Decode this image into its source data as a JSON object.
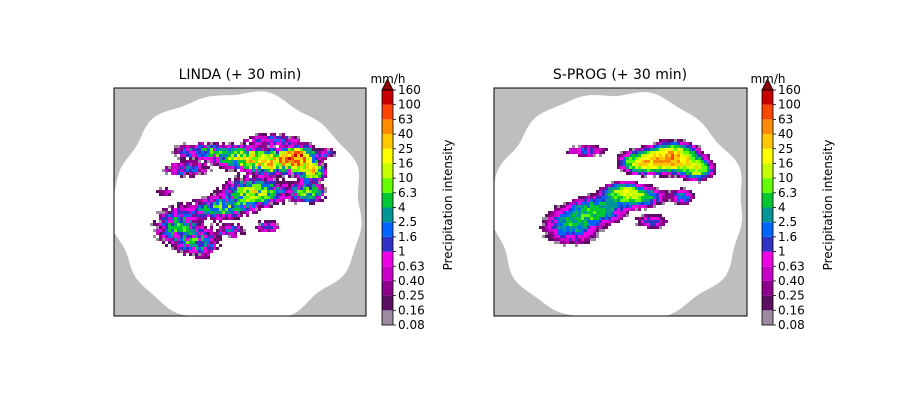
{
  "chart_data": [
    {
      "type": "heatmap",
      "title": "LINDA (+ 30 min)",
      "variant": "linda",
      "colorbar": {
        "unit": "mm/h",
        "label": "Precipitation intensity",
        "levels": [
          "0.08",
          "0.16",
          "0.25",
          "0.40",
          "0.63",
          "1",
          "1.6",
          "2.5",
          "4",
          "6.3",
          "10",
          "16",
          "25",
          "40",
          "63",
          "100",
          "160"
        ],
        "extend": "max"
      }
    },
    {
      "type": "heatmap",
      "title": "S-PROG (+ 30 min)",
      "variant": "sprog",
      "colorbar": {
        "unit": "mm/h",
        "label": "Precipitation intensity",
        "levels": [
          "0.08",
          "0.16",
          "0.25",
          "0.40",
          "0.63",
          "1",
          "1.6",
          "2.5",
          "4",
          "6.3",
          "10",
          "16",
          "25",
          "40",
          "63",
          "100",
          "160"
        ],
        "extend": "max"
      }
    }
  ],
  "colors": {
    "no_data": "#bebebe",
    "background": "#ffffff",
    "bins": [
      "#9c8aa0",
      "#5a0f62",
      "#8c008c",
      "#c800c8",
      "#f000e6",
      "#3232c8",
      "#0064ff",
      "#009696",
      "#00c832",
      "#64ff00",
      "#c8ff00",
      "#ffff00",
      "#ffc800",
      "#ff8c00",
      "#ff4600",
      "#c80000"
    ],
    "over": "#8b0000"
  }
}
